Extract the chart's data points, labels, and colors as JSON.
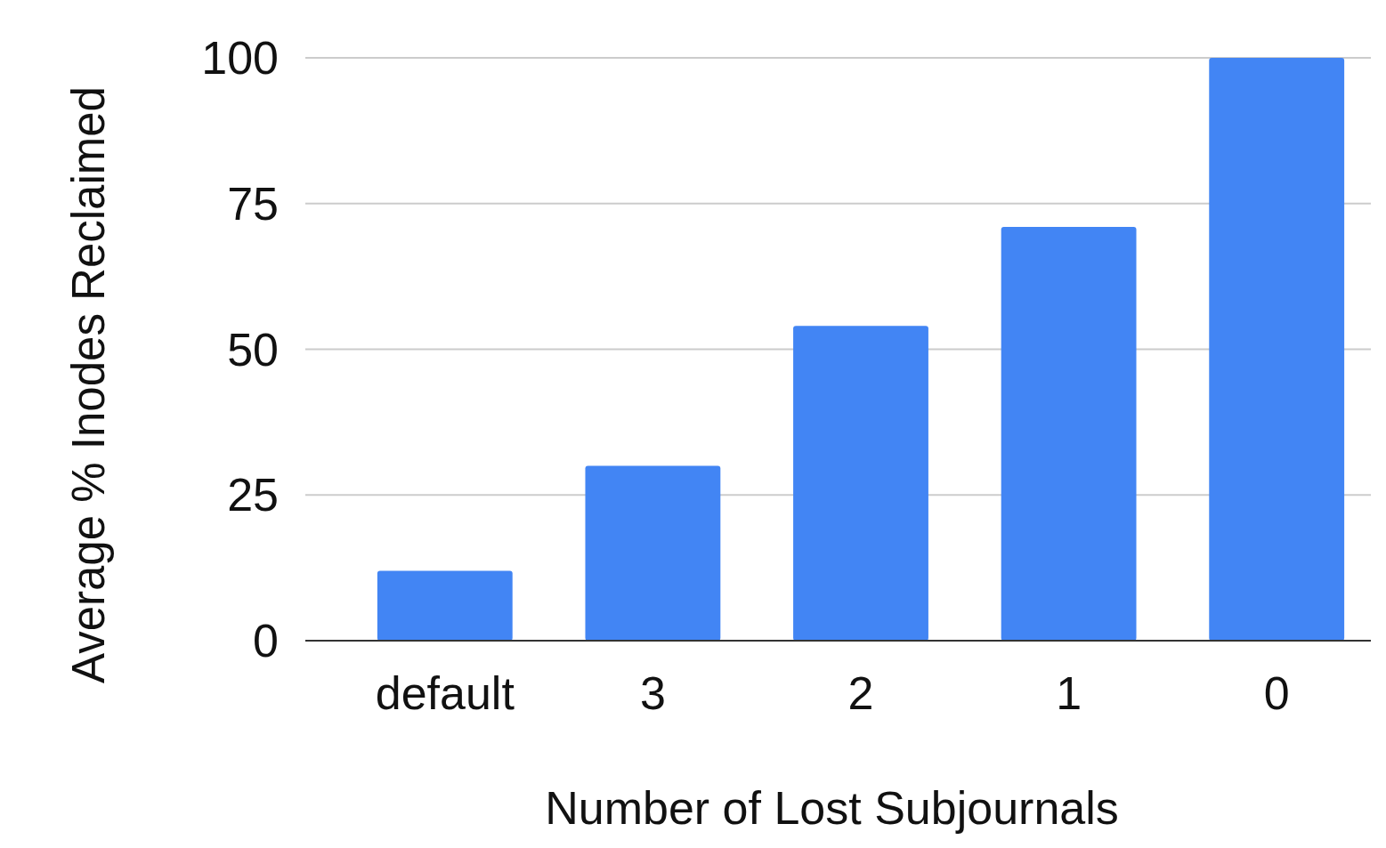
{
  "chart_data": {
    "type": "bar",
    "xlabel": "Number of Lost Subjournals",
    "ylabel": "Average % Inodes Reclaimed",
    "categories": [
      "default",
      "3",
      "2",
      "1",
      "0"
    ],
    "values": [
      12,
      30,
      54,
      71,
      100
    ],
    "color": "#4285f4",
    "ylim": [
      0,
      100
    ],
    "yticks": [
      0,
      25,
      50,
      75,
      100
    ],
    "grid": "y"
  }
}
